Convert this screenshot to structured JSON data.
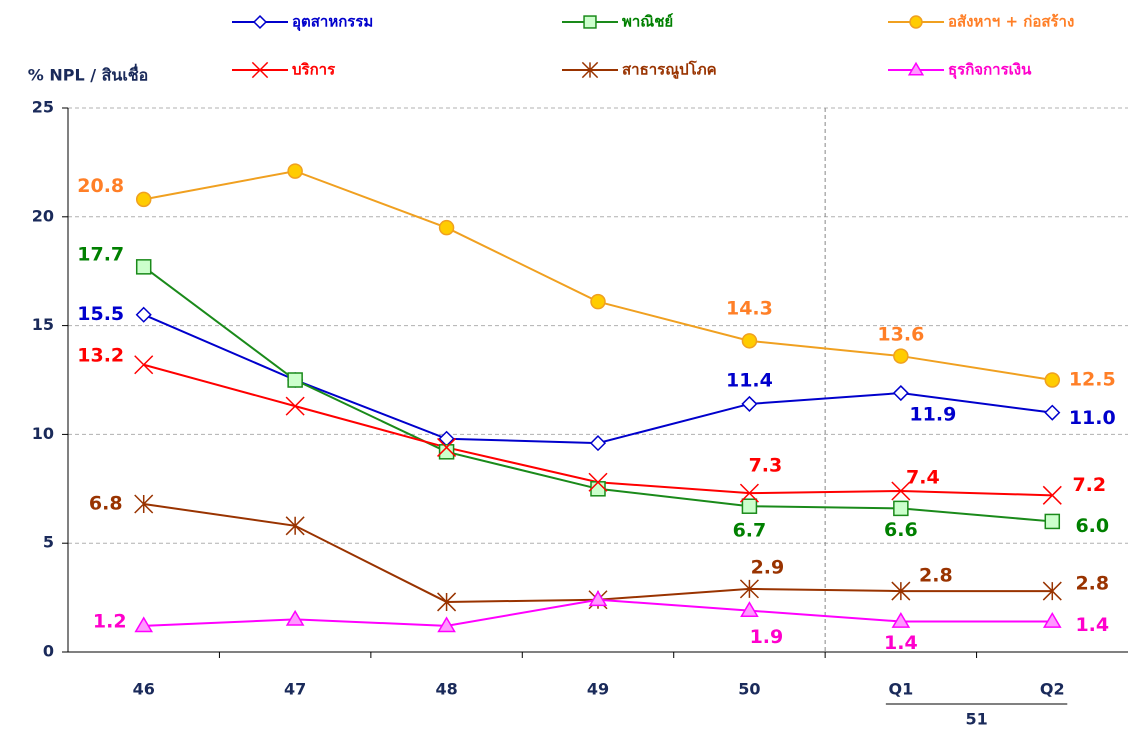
{
  "chart_data": {
    "type": "line",
    "y_label": "% NPL / สินเชื่อ",
    "categories": [
      "46",
      "47",
      "48",
      "49",
      "50",
      "Q1",
      "Q2"
    ],
    "group_label": "51",
    "ylim": [
      0,
      25
    ],
    "yticks": [
      0,
      5,
      10,
      15,
      20,
      25
    ],
    "grid": true,
    "series": [
      {
        "name": "อุตสาหกรรม",
        "color": "#0000cc",
        "label_color": "#0000cc",
        "marker": "diamond",
        "marker_fill": "#ffffff",
        "values": [
          15.5,
          12.5,
          9.8,
          9.6,
          11.4,
          11.9,
          11.0
        ],
        "value_labels": [
          "15.5",
          null,
          null,
          null,
          "11.4",
          "11.9",
          "11.0"
        ]
      },
      {
        "name": "พาณิชย์",
        "color": "#1a8a1a",
        "label_color": "#008000",
        "marker": "square",
        "marker_fill": "#ccffcc",
        "values": [
          17.7,
          12.5,
          9.2,
          7.5,
          6.7,
          6.6,
          6.0
        ],
        "value_labels": [
          "17.7",
          null,
          null,
          null,
          "6.7",
          "6.6",
          "6.0"
        ]
      },
      {
        "name": "อสังหาฯ + ก่อสร้าง",
        "color": "#f0a020",
        "label_color": "#ff7f27",
        "marker": "circle",
        "marker_fill": "#ffcc00",
        "values": [
          20.8,
          22.1,
          19.5,
          16.1,
          14.3,
          13.6,
          12.5
        ],
        "value_labels": [
          "20.8",
          null,
          null,
          null,
          "14.3",
          "13.6",
          "12.5"
        ]
      },
      {
        "name": "บริการ",
        "color": "#ff0000",
        "label_color": "#ff0000",
        "marker": "x",
        "marker_fill": "none",
        "values": [
          13.2,
          11.3,
          9.4,
          7.8,
          7.3,
          7.4,
          7.2
        ],
        "value_labels": [
          "13.2",
          null,
          null,
          null,
          "7.3",
          "7.4",
          "7.2"
        ]
      },
      {
        "name": "สาธารณูปโภค",
        "color": "#993300",
        "label_color": "#993300",
        "marker": "star",
        "marker_fill": "none",
        "values": [
          6.8,
          5.8,
          2.3,
          2.4,
          2.9,
          2.8,
          2.8
        ],
        "value_labels": [
          "6.8",
          null,
          null,
          null,
          "2.9",
          "2.8",
          "2.8"
        ]
      },
      {
        "name": "ธุรกิจการเงิน",
        "color": "#ff00ff",
        "label_color": "#ff00cc",
        "marker": "triangle",
        "marker_fill": "#ff99ff",
        "values": [
          1.2,
          1.5,
          1.2,
          2.4,
          1.9,
          1.4,
          1.4
        ],
        "value_labels": [
          "1.2",
          null,
          null,
          null,
          "1.9",
          "1.4",
          "1.4"
        ]
      }
    ]
  }
}
